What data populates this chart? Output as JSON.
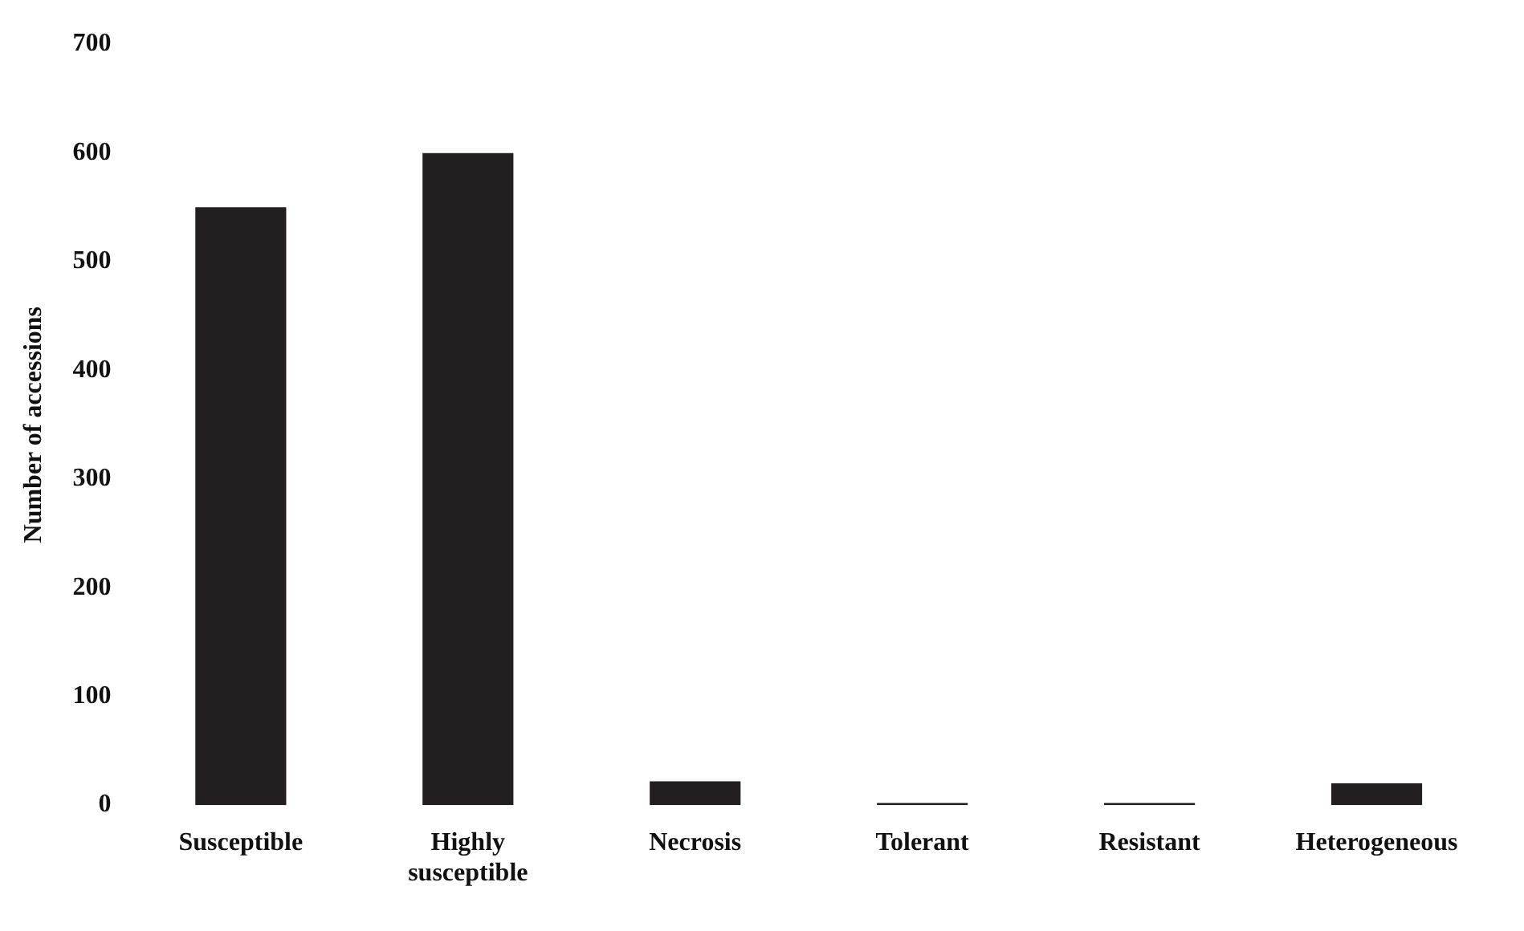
{
  "chart_data": {
    "type": "bar",
    "ylabel": "Number of accessions",
    "categories": [
      "Susceptible",
      "Highly susceptible",
      "Necrosis",
      "Tolerant",
      "Resistant",
      "Heterogeneous"
    ],
    "values": [
      550,
      600,
      22,
      2,
      2,
      20
    ],
    "color": "#231f20",
    "ylim": [
      0,
      700
    ],
    "yticks": [
      0,
      100,
      200,
      300,
      400,
      500,
      600,
      700
    ],
    "grid": false,
    "legend": false
  }
}
